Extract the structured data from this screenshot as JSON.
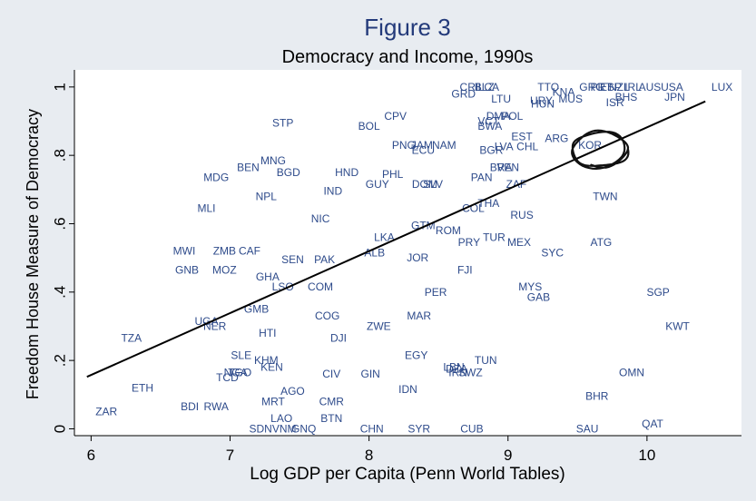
{
  "colors": {
    "background": "#e8ecf1",
    "plot_background": "#ffffff",
    "title": "#233a7a",
    "point_label": "#2e4b8b",
    "axis": "#000000",
    "fit_line": "#000000",
    "circle_mark": "#111111"
  },
  "chart_data": {
    "type": "scatter",
    "title": "Figure 3",
    "subtitle": "Democracy and Income, 1990s",
    "xlabel": "Log GDP per Capita (Penn World Tables)",
    "ylabel": "Freedom House Measure of Democracy",
    "xlim": [
      5.88,
      10.68
    ],
    "ylim": [
      -0.02,
      1.05
    ],
    "xticks": [
      6,
      7,
      8,
      9,
      10
    ],
    "xtick_labels": [
      "6",
      "7",
      "8",
      "9",
      "10"
    ],
    "yticks": [
      0,
      0.2,
      0.4,
      0.6,
      0.8,
      1
    ],
    "ytick_labels": [
      "0",
      ".2",
      ".4",
      ".6",
      ".8",
      "1"
    ],
    "grid": false,
    "marker": "country-code labels",
    "fit_line": {
      "x": [
        5.97,
        10.42
      ],
      "y": [
        0.152,
        0.958
      ]
    },
    "annotation": {
      "type": "hand-drawn circle",
      "target": "KOR"
    },
    "points": [
      {
        "label": "ZAR",
        "x": 6.11,
        "y": 0.05
      },
      {
        "label": "ETH",
        "x": 6.37,
        "y": 0.12
      },
      {
        "label": "TZA",
        "x": 6.29,
        "y": 0.265
      },
      {
        "label": "BDI",
        "x": 6.71,
        "y": 0.065
      },
      {
        "label": "RWA",
        "x": 6.9,
        "y": 0.065
      },
      {
        "label": "MWI",
        "x": 6.67,
        "y": 0.52
      },
      {
        "label": "GNB",
        "x": 6.69,
        "y": 0.465
      },
      {
        "label": "MLI",
        "x": 6.83,
        "y": 0.645
      },
      {
        "label": "MDG",
        "x": 6.9,
        "y": 0.735
      },
      {
        "label": "ZMB",
        "x": 6.96,
        "y": 0.52
      },
      {
        "label": "CAF",
        "x": 7.14,
        "y": 0.52
      },
      {
        "label": "MOZ",
        "x": 6.96,
        "y": 0.465
      },
      {
        "label": "UGA",
        "x": 6.83,
        "y": 0.315
      },
      {
        "label": "NER",
        "x": 6.89,
        "y": 0.3
      },
      {
        "label": "BEN",
        "x": 7.13,
        "y": 0.765
      },
      {
        "label": "TCD",
        "x": 6.98,
        "y": 0.15
      },
      {
        "label": "NGA",
        "x": 7.04,
        "y": 0.165
      },
      {
        "label": "TGO",
        "x": 7.07,
        "y": 0.165
      },
      {
        "label": "SLE",
        "x": 7.08,
        "y": 0.215
      },
      {
        "label": "KHM",
        "x": 7.26,
        "y": 0.2
      },
      {
        "label": "KEN",
        "x": 7.3,
        "y": 0.18
      },
      {
        "label": "GMB",
        "x": 7.19,
        "y": 0.35
      },
      {
        "label": "HTI",
        "x": 7.27,
        "y": 0.28
      },
      {
        "label": "GHA",
        "x": 7.27,
        "y": 0.445
      },
      {
        "label": "LSO",
        "x": 7.38,
        "y": 0.415
      },
      {
        "label": "NPL",
        "x": 7.26,
        "y": 0.68
      },
      {
        "label": "MNG",
        "x": 7.31,
        "y": 0.785
      },
      {
        "label": "BGD",
        "x": 7.42,
        "y": 0.75
      },
      {
        "label": "STP",
        "x": 7.38,
        "y": 0.895
      },
      {
        "label": "MRT",
        "x": 7.31,
        "y": 0.08
      },
      {
        "label": "AGO",
        "x": 7.45,
        "y": 0.11
      },
      {
        "label": "LAO",
        "x": 7.37,
        "y": 0.03
      },
      {
        "label": "SDN",
        "x": 7.22,
        "y": 0.0
      },
      {
        "label": "VNM",
        "x": 7.39,
        "y": 0.0
      },
      {
        "label": "GNQ",
        "x": 7.53,
        "y": 0.0
      },
      {
        "label": "SEN",
        "x": 7.45,
        "y": 0.495
      },
      {
        "label": "PAK",
        "x": 7.68,
        "y": 0.495
      },
      {
        "label": "COM",
        "x": 7.65,
        "y": 0.415
      },
      {
        "label": "NIC",
        "x": 7.65,
        "y": 0.615
      },
      {
        "label": "IND",
        "x": 7.74,
        "y": 0.695
      },
      {
        "label": "HND",
        "x": 7.84,
        "y": 0.75
      },
      {
        "label": "BOL",
        "x": 8.0,
        "y": 0.885
      },
      {
        "label": "CPV",
        "x": 8.19,
        "y": 0.915
      },
      {
        "label": "COG",
        "x": 7.7,
        "y": 0.33
      },
      {
        "label": "DJI",
        "x": 7.78,
        "y": 0.265
      },
      {
        "label": "CIV",
        "x": 7.73,
        "y": 0.16
      },
      {
        "label": "CMR",
        "x": 7.73,
        "y": 0.08
      },
      {
        "label": "BTN",
        "x": 7.73,
        "y": 0.03
      },
      {
        "label": "GIN",
        "x": 8.01,
        "y": 0.16
      },
      {
        "label": "CHN",
        "x": 8.02,
        "y": 0.0
      },
      {
        "label": "ZWE",
        "x": 8.07,
        "y": 0.3
      },
      {
        "label": "ALB",
        "x": 8.04,
        "y": 0.515
      },
      {
        "label": "LKA",
        "x": 8.11,
        "y": 0.56
      },
      {
        "label": "GUY",
        "x": 8.06,
        "y": 0.715
      },
      {
        "label": "PHL",
        "x": 8.17,
        "y": 0.745
      },
      {
        "label": "PNG",
        "x": 8.25,
        "y": 0.83
      },
      {
        "label": "ECU",
        "x": 8.39,
        "y": 0.815
      },
      {
        "label": "JAM",
        "x": 8.38,
        "y": 0.83
      },
      {
        "label": "NAM",
        "x": 8.54,
        "y": 0.83
      },
      {
        "label": "DOM",
        "x": 8.4,
        "y": 0.715
      },
      {
        "label": "SLV",
        "x": 8.46,
        "y": 0.715
      },
      {
        "label": "GTM",
        "x": 8.39,
        "y": 0.595
      },
      {
        "label": "ROM",
        "x": 8.57,
        "y": 0.58
      },
      {
        "label": "JOR",
        "x": 8.35,
        "y": 0.5
      },
      {
        "label": "MAR",
        "x": 8.36,
        "y": 0.33
      },
      {
        "label": "EGY",
        "x": 8.34,
        "y": 0.215
      },
      {
        "label": "IDN",
        "x": 8.28,
        "y": 0.115
      },
      {
        "label": "SYR",
        "x": 8.36,
        "y": 0.0
      },
      {
        "label": "PER",
        "x": 8.48,
        "y": 0.4
      },
      {
        "label": "FJI",
        "x": 8.69,
        "y": 0.465
      },
      {
        "label": "PRY",
        "x": 8.72,
        "y": 0.545
      },
      {
        "label": "LBN",
        "x": 8.61,
        "y": 0.18
      },
      {
        "label": "DZA",
        "x": 8.63,
        "y": 0.175
      },
      {
        "label": "IRN",
        "x": 8.64,
        "y": 0.165
      },
      {
        "label": "SWZ",
        "x": 8.73,
        "y": 0.165
      },
      {
        "label": "TUN",
        "x": 8.84,
        "y": 0.2
      },
      {
        "label": "CUB",
        "x": 8.74,
        "y": 0.0
      },
      {
        "label": "COL",
        "x": 8.75,
        "y": 0.645
      },
      {
        "label": "PAN",
        "x": 8.81,
        "y": 0.735
      },
      {
        "label": "BGR",
        "x": 8.88,
        "y": 0.815
      },
      {
        "label": "BWA",
        "x": 8.87,
        "y": 0.885
      },
      {
        "label": "VCT",
        "x": 8.86,
        "y": 0.9
      },
      {
        "label": "DMA",
        "x": 8.93,
        "y": 0.915
      },
      {
        "label": "POL",
        "x": 9.03,
        "y": 0.915
      },
      {
        "label": "LTU",
        "x": 8.95,
        "y": 0.965
      },
      {
        "label": "GRD",
        "x": 8.68,
        "y": 0.98
      },
      {
        "label": "CRI",
        "x": 8.72,
        "y": 1.0
      },
      {
        "label": "BLZ",
        "x": 8.83,
        "y": 1.0
      },
      {
        "label": "LCA",
        "x": 8.86,
        "y": 1.0
      },
      {
        "label": "BRA",
        "x": 8.95,
        "y": 0.765
      },
      {
        "label": "VEN",
        "x": 9.0,
        "y": 0.765
      },
      {
        "label": "ZAF",
        "x": 9.06,
        "y": 0.715
      },
      {
        "label": "THA",
        "x": 8.86,
        "y": 0.66
      },
      {
        "label": "RUS",
        "x": 9.1,
        "y": 0.625
      },
      {
        "label": "LVA",
        "x": 8.97,
        "y": 0.825
      },
      {
        "label": "EST",
        "x": 9.1,
        "y": 0.855
      },
      {
        "label": "CHL",
        "x": 9.14,
        "y": 0.825
      },
      {
        "label": "TUR",
        "x": 8.9,
        "y": 0.56
      },
      {
        "label": "MEX",
        "x": 9.08,
        "y": 0.545
      },
      {
        "label": "SYC",
        "x": 9.32,
        "y": 0.515
      },
      {
        "label": "MYS",
        "x": 9.16,
        "y": 0.415
      },
      {
        "label": "GAB",
        "x": 9.22,
        "y": 0.385
      },
      {
        "label": "TTO",
        "x": 9.29,
        "y": 1.0
      },
      {
        "label": "KNA",
        "x": 9.4,
        "y": 0.985
      },
      {
        "label": "MUS",
        "x": 9.45,
        "y": 0.965
      },
      {
        "label": "URY",
        "x": 9.24,
        "y": 0.96
      },
      {
        "label": "HUN",
        "x": 9.25,
        "y": 0.95
      },
      {
        "label": "ARG",
        "x": 9.35,
        "y": 0.85
      },
      {
        "label": "KOR",
        "x": 9.59,
        "y": 0.83
      },
      {
        "label": "GRC",
        "x": 9.6,
        "y": 1.0
      },
      {
        "label": "PRT",
        "x": 9.67,
        "y": 1.0
      },
      {
        "label": "ESP",
        "x": 9.74,
        "y": 1.0
      },
      {
        "label": "NZL",
        "x": 9.8,
        "y": 1.0
      },
      {
        "label": "IRL",
        "x": 9.9,
        "y": 1.0
      },
      {
        "label": "AUS",
        "x": 10.02,
        "y": 1.0
      },
      {
        "label": "USA",
        "x": 10.18,
        "y": 1.0
      },
      {
        "label": "LUX",
        "x": 10.54,
        "y": 1.0
      },
      {
        "label": "BHS",
        "x": 9.85,
        "y": 0.97
      },
      {
        "label": "ISR",
        "x": 9.77,
        "y": 0.955
      },
      {
        "label": "JPN",
        "x": 10.2,
        "y": 0.97
      },
      {
        "label": "TWN",
        "x": 9.7,
        "y": 0.68
      },
      {
        "label": "ATG",
        "x": 9.67,
        "y": 0.545
      },
      {
        "label": "SGP",
        "x": 10.08,
        "y": 0.4
      },
      {
        "label": "KWT",
        "x": 10.22,
        "y": 0.3
      },
      {
        "label": "OMN",
        "x": 9.89,
        "y": 0.165
      },
      {
        "label": "BHR",
        "x": 9.64,
        "y": 0.095
      },
      {
        "label": "QAT",
        "x": 10.04,
        "y": 0.015
      },
      {
        "label": "SAU",
        "x": 9.57,
        "y": 0.0
      }
    ]
  }
}
